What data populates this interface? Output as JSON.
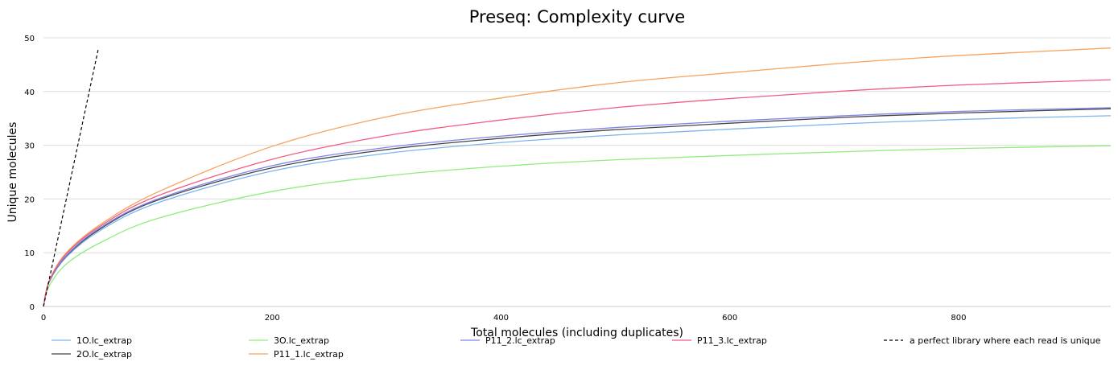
{
  "chart_data": {
    "type": "line",
    "title": "Preseq: Complexity curve",
    "xlabel": "Total molecules (including duplicates)",
    "ylabel": "Unique molecules",
    "xlim": [
      0,
      933
    ],
    "ylim": [
      0,
      50
    ],
    "x_ticks": [
      0,
      200,
      400,
      600,
      800
    ],
    "y_ticks": [
      0,
      10,
      20,
      30,
      40,
      50
    ],
    "grid": "horizontal",
    "legend_position": "bottom",
    "x": [
      0,
      5,
      20,
      50,
      100,
      200,
      300,
      400,
      500,
      600,
      700,
      800,
      933
    ],
    "series": [
      {
        "name": "1O.lc_extrap",
        "color": "#7cb5ec",
        "values": [
          0,
          4.5,
          9.2,
          14.2,
          19.3,
          25.2,
          28.5,
          30.5,
          31.9,
          33.0,
          34.0,
          34.8,
          35.5
        ]
      },
      {
        "name": "2O.lc_extrap",
        "color": "#434348",
        "values": [
          0,
          4.6,
          9.4,
          14.5,
          19.8,
          25.8,
          29.2,
          31.3,
          32.9,
          34.1,
          35.2,
          36.0,
          36.8
        ]
      },
      {
        "name": "3O.lc_extrap",
        "color": "#90ed7d",
        "values": [
          0,
          3.8,
          7.9,
          11.9,
          16.4,
          21.4,
          24.3,
          26.1,
          27.3,
          28.1,
          28.8,
          29.4,
          29.9
        ]
      },
      {
        "name": "P11_1.lc_extrap",
        "color": "#f7a35c",
        "values": [
          0,
          4.8,
          10.0,
          15.3,
          21.3,
          29.8,
          35.3,
          38.8,
          41.6,
          43.5,
          45.3,
          46.7,
          48.1
        ]
      },
      {
        "name": "P11_2.lc_extrap",
        "color": "#8085e9",
        "values": [
          0,
          4.6,
          9.5,
          14.7,
          20.0,
          26.2,
          29.6,
          31.7,
          33.3,
          34.5,
          35.5,
          36.3,
          37.0
        ]
      },
      {
        "name": "P11_3.lc_extrap",
        "color": "#f15c80",
        "values": [
          0,
          4.7,
          9.8,
          15.0,
          20.6,
          27.4,
          31.8,
          34.7,
          37.0,
          38.7,
          40.1,
          41.2,
          42.2
        ]
      }
    ],
    "reference_line": {
      "name": "a perfect library where each read is unique",
      "color": "#000000",
      "style": "dashed",
      "x": [
        0,
        48
      ],
      "y": [
        0,
        48
      ]
    }
  }
}
